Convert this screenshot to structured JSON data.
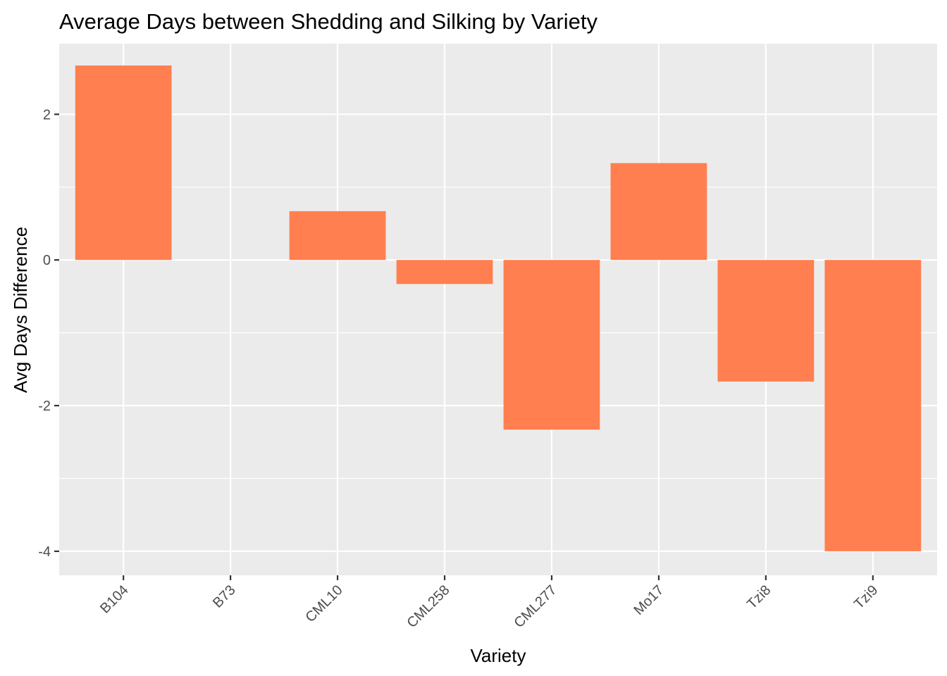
{
  "chart_data": {
    "type": "bar",
    "title": "Average Days between Shedding and Silking by Variety",
    "xlabel": "Variety",
    "ylabel": "Avg Days Difference",
    "categories": [
      "B104",
      "B73",
      "CML10",
      "CML258",
      "CML277",
      "Mo17",
      "Tzi8",
      "Tzi9"
    ],
    "values": [
      2.67,
      0,
      0.67,
      -0.33,
      -2.33,
      1.33,
      -1.67,
      -4
    ],
    "ylim": [
      -4.33,
      2.97
    ],
    "yticks": [
      -4,
      -2,
      0,
      2
    ],
    "ytick_labels": [
      "-4",
      "-2",
      "0",
      "2"
    ],
    "grid": true,
    "colors": {
      "bar": "#FF7F50",
      "panel": "#EBEBEB",
      "grid": "#FFFFFF",
      "tick_text": "#4D4D4D"
    }
  }
}
